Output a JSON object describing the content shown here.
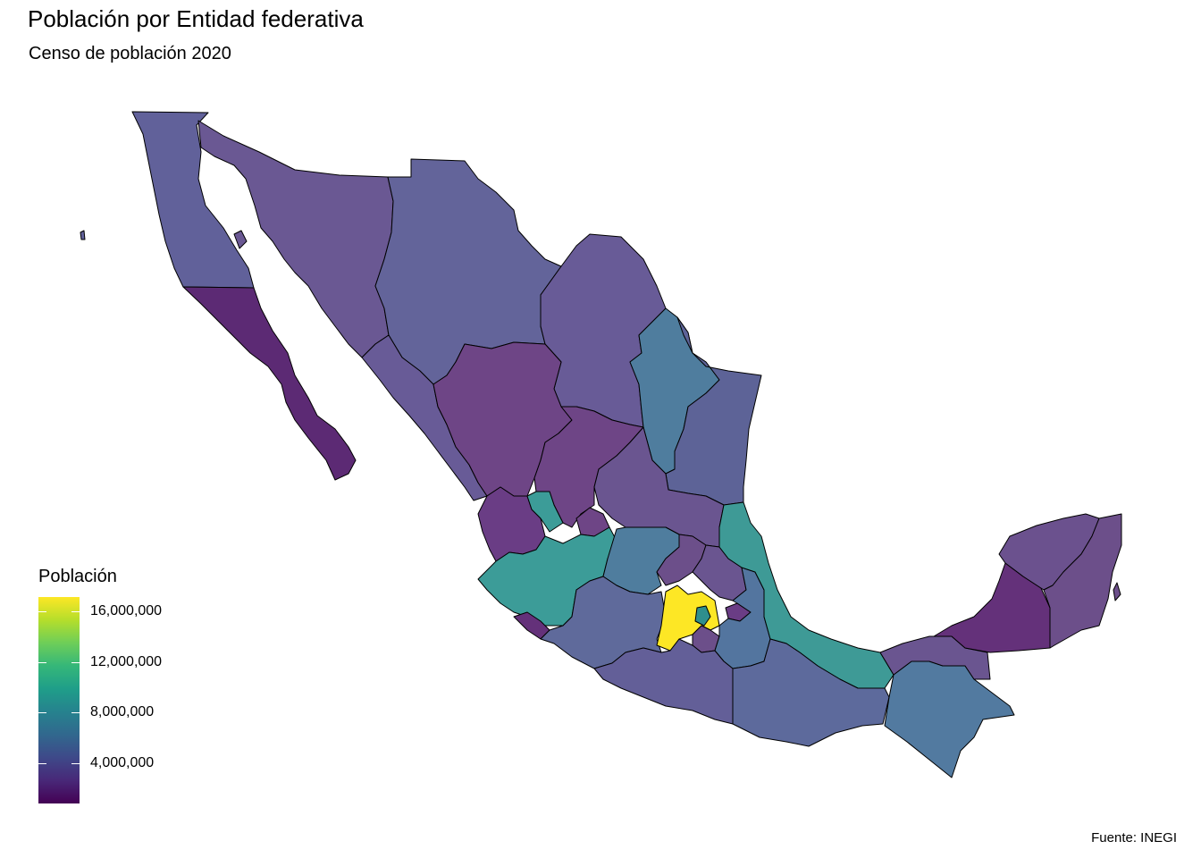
{
  "title": "Población por Entidad federativa",
  "subtitle": "Censo de población 2020",
  "caption": "Fuente: INEGI",
  "legend": {
    "title": "Población",
    "breaks": [
      "16,000,000",
      "12,000,000",
      "8,000,000",
      "4,000,000"
    ],
    "colors": [
      "#440154",
      "#482878",
      "#3e4989",
      "#31688e",
      "#26828e",
      "#1f9e89",
      "#35b779",
      "#6ece58",
      "#b5de2b",
      "#fde725"
    ]
  },
  "map": {
    "fill_colors": {
      "estado_de_mexico": "#fde725",
      "cdmx": "#2f8f8d",
      "jalisco": "#3c9c98",
      "veracruz": "#3e9a96",
      "guanajuato": "#4f7d9e",
      "chiapas": "#527aa0",
      "nuevo_leon": "#4f7d9e",
      "puebla": "#53759f",
      "michoacan": "#5f6a9b",
      "oaxaca": "#5d6a9c",
      "chihuahua": "#63649a",
      "guerrero": "#635f98",
      "tamaulipas": "#5d6397",
      "baja_california": "#61619a",
      "sinaloa": "#685b97",
      "coahuila": "#685b97",
      "sonora": "#6a5893",
      "hidalgo": "#6a5590",
      "san_luis_potosi": "#6a5590",
      "tabasco": "#6a5590",
      "yucatan": "#6b518e",
      "queretaro": "#6c4f8a",
      "quintana_roo": "#6c4f8a",
      "durango": "#6e4586",
      "zacatecas": "#6e4586",
      "aguascalientes": "#6e4586",
      "morelos": "#6c4f8a",
      "nayarit": "#6a3d85",
      "tlaxcala": "#6a3d85",
      "campeche": "#64317a",
      "colima": "#64317a",
      "baja_california_sur": "#5c2a74"
    }
  }
}
